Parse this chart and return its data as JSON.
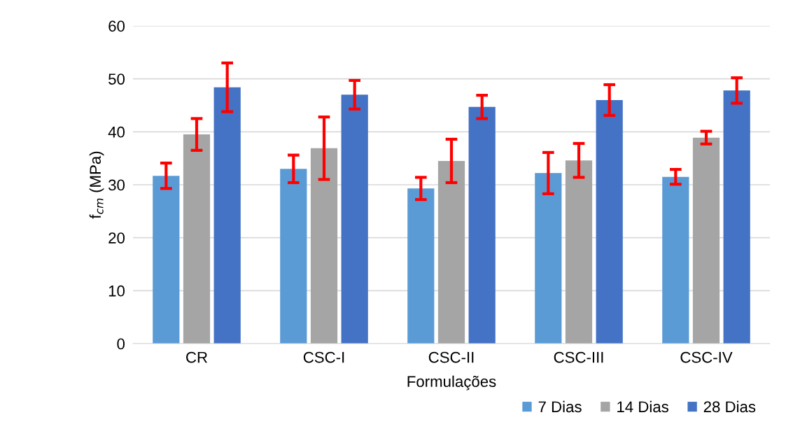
{
  "chart_data": {
    "type": "bar",
    "xlabel": "Formulações",
    "ylabel": "f$_{cm}$ (MPa)",
    "categories": [
      "CR",
      "CSC-I",
      "CSC-II",
      "CSC-III",
      "CSC-IV"
    ],
    "series": [
      {
        "name": "7 Dias",
        "color": "#5b9bd5",
        "values": [
          31.7,
          33.0,
          29.3,
          32.2,
          31.5
        ],
        "errors": [
          2.4,
          2.6,
          2.1,
          3.9,
          1.4
        ]
      },
      {
        "name": "14 Dias",
        "color": "#a5a5a5",
        "values": [
          39.5,
          36.9,
          34.5,
          34.6,
          38.9
        ],
        "errors": [
          3.0,
          5.9,
          4.1,
          3.2,
          1.2
        ]
      },
      {
        "name": "28 Dias",
        "color": "#4472c4",
        "values": [
          48.4,
          47.0,
          44.7,
          46.0,
          47.8
        ],
        "errors": [
          4.6,
          2.7,
          2.2,
          2.9,
          2.4
        ]
      }
    ],
    "ylim": [
      0,
      60
    ],
    "yticks": [
      0,
      10,
      20,
      30,
      40,
      50,
      60
    ],
    "grid": "y",
    "legend": "bottom right"
  }
}
